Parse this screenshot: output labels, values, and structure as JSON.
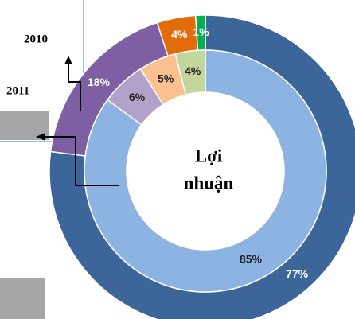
{
  "chart_data": {
    "type": "donut",
    "center_label": [
      "Lợi",
      "nhuận"
    ],
    "series": [
      {
        "name": "2010",
        "values": [
          77,
          18,
          4,
          1
        ],
        "value_labels": [
          "77%",
          "18%",
          "4%",
          "1%"
        ],
        "colors": [
          "#3c6699",
          "#7f5fa3",
          "#e36c0a",
          "#00b050"
        ]
      },
      {
        "name": "2011",
        "values": [
          85,
          6,
          5,
          4
        ],
        "value_labels": [
          "85%",
          "6%",
          "5%",
          "4%"
        ],
        "colors": [
          "#8db3e2",
          "#b3a2c7",
          "#fac090",
          "#c3d69b"
        ]
      }
    ]
  }
}
